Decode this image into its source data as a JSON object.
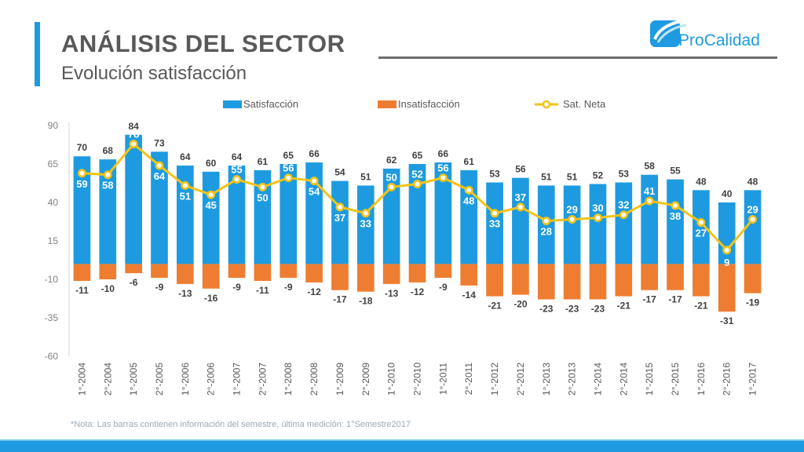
{
  "header": {
    "title": "ANÁLISIS DEL SECTOR",
    "subtitle": "Evolución satisfacción"
  },
  "logo": {
    "text_part1": "Pro",
    "text_part2": "Calidad"
  },
  "note": "*Nota: Las barras contienen información del semestre, última medición: 1°Semestre2017",
  "colors": {
    "satisfaccion": "#1e9be0",
    "insatisfaccion": "#ee7d31",
    "sat_neta": "#f3c316",
    "accent": "#1e9be0"
  },
  "chart_data": {
    "type": "bar",
    "categories": [
      "1°-2004",
      "2°-2004",
      "1°-2005",
      "2°-2005",
      "1°-2006",
      "2°-2006",
      "1°-2007",
      "2°-2007",
      "1°-2008",
      "2°-2008",
      "1°-2009",
      "2°-2009",
      "1°-2010",
      "2°-2010",
      "1°-2011",
      "2°-2011",
      "1°-2012",
      "2°-2012",
      "1°-2013",
      "2°-2013",
      "1°-2014",
      "2°-2014",
      "1°-2015",
      "2°-2015",
      "1°-2016",
      "2°-2016",
      "1°-2017"
    ],
    "series": [
      {
        "name": "Satisfacción",
        "kind": "bar",
        "values": [
          70,
          68,
          84,
          73,
          64,
          60,
          64,
          61,
          65,
          66,
          54,
          51,
          62,
          65,
          66,
          61,
          53,
          56,
          51,
          51,
          52,
          53,
          58,
          55,
          48,
          40,
          48
        ]
      },
      {
        "name": "Insatisfacción",
        "kind": "bar",
        "values": [
          -11,
          -10,
          -6,
          -9,
          -13,
          -16,
          -9,
          -11,
          -9,
          -12,
          -17,
          -18,
          -13,
          -12,
          -9,
          -14,
          -21,
          -20,
          -23,
          -23,
          -23,
          -21,
          -17,
          -17,
          -21,
          -31,
          -19
        ]
      },
      {
        "name": "Sat. Neta",
        "kind": "line",
        "values": [
          59,
          58,
          78,
          64,
          51,
          45,
          55,
          50,
          56,
          54,
          37,
          33,
          50,
          52,
          56,
          48,
          33,
          37,
          28,
          29,
          30,
          32,
          41,
          38,
          27,
          9,
          29
        ]
      }
    ],
    "yticks": [
      90,
      65,
      40,
      15,
      -10,
      -35,
      -60
    ],
    "ylim": [
      -60,
      90
    ],
    "legend_position": "top",
    "grid": false
  }
}
